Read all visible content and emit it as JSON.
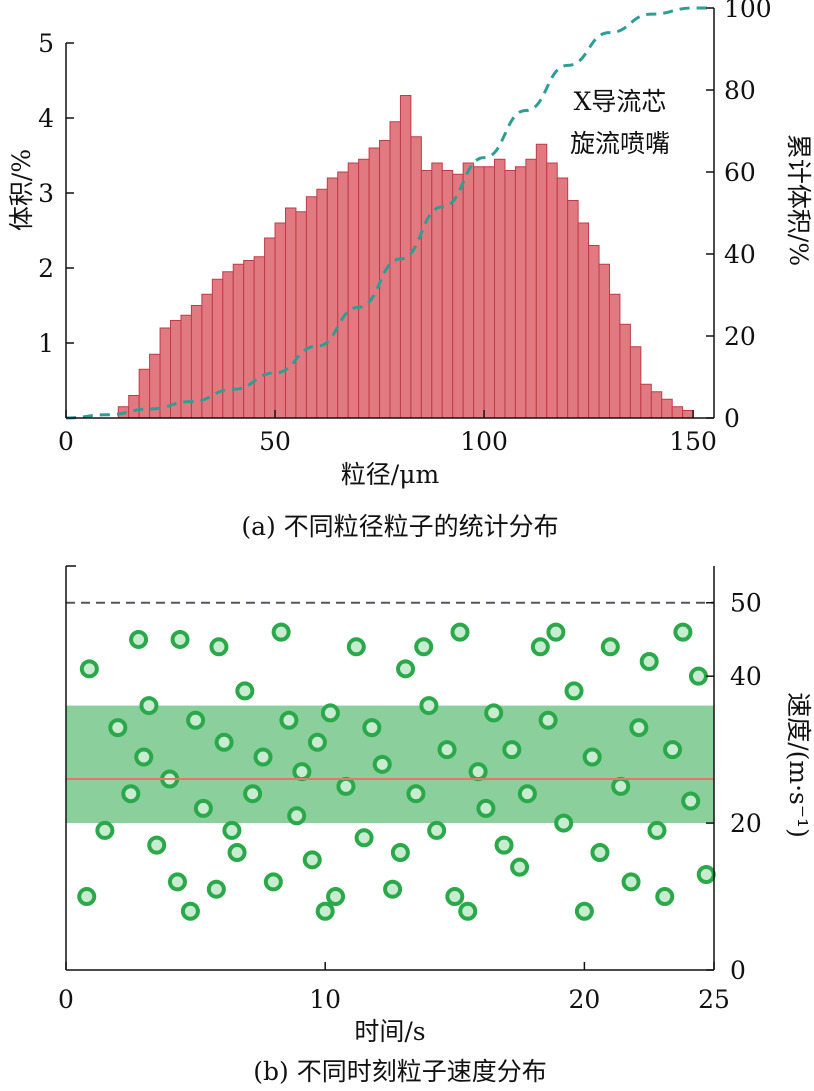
{
  "chart_data": [
    {
      "type": "bar",
      "caption": "(a) 不同粒径粒子的统计分布",
      "xlabel": "粒径/μm",
      "ylabel": "体积/%",
      "y2label": "累计体积/%",
      "annotation": [
        "X导流芯",
        "旋流喷嘴"
      ],
      "xlim": [
        0,
        155
      ],
      "ylim": [
        0,
        5
      ],
      "y2lim": [
        0,
        100
      ],
      "xticks": [
        0,
        50,
        100,
        150
      ],
      "yticks": [
        1,
        2,
        3,
        4,
        5
      ],
      "y2ticks": [
        0,
        20,
        40,
        60,
        80,
        100
      ],
      "bin_width": 2.5,
      "bin_centers": [
        13.75,
        16.25,
        18.75,
        21.25,
        23.75,
        26.25,
        28.75,
        31.25,
        33.75,
        36.25,
        38.75,
        41.25,
        43.75,
        46.25,
        48.75,
        51.25,
        53.75,
        56.25,
        58.75,
        61.25,
        63.75,
        66.25,
        68.75,
        71.25,
        73.75,
        76.25,
        78.75,
        81.25,
        83.75,
        86.25,
        88.75,
        91.25,
        93.75,
        96.25,
        98.75,
        101.25,
        103.75,
        106.25,
        108.75,
        111.25,
        113.75,
        116.25,
        118.75,
        121.25,
        123.75,
        126.25,
        128.75,
        131.25,
        133.75,
        136.25,
        138.75,
        141.25,
        143.75,
        146.25,
        148.75
      ],
      "values": [
        0.15,
        0.3,
        0.65,
        0.85,
        1.2,
        1.3,
        1.37,
        1.5,
        1.65,
        1.85,
        1.95,
        2.05,
        2.1,
        2.15,
        2.4,
        2.6,
        2.8,
        2.75,
        2.95,
        3.05,
        3.2,
        3.28,
        3.4,
        3.45,
        3.6,
        3.7,
        3.95,
        4.3,
        3.75,
        3.3,
        3.4,
        3.3,
        3.25,
        3.4,
        3.35,
        3.35,
        3.45,
        3.3,
        3.35,
        3.45,
        3.65,
        3.4,
        3.2,
        2.9,
        2.6,
        2.3,
        2.05,
        1.65,
        1.25,
        0.95,
        0.45,
        0.35,
        0.25,
        0.15,
        0.1
      ],
      "cumulative_series": {
        "name": "累计体积",
        "style": "dashed",
        "color": "#2e9e94",
        "x": [
          0,
          10,
          20,
          30,
          40,
          50,
          60,
          70,
          80,
          90,
          100,
          110,
          120,
          130,
          140,
          150,
          160
        ],
        "y": [
          0,
          0.8,
          2.2,
          4,
          7,
          11,
          17.5,
          27,
          38.8,
          51.5,
          63.5,
          75,
          86,
          94,
          98.5,
          100,
          100
        ]
      },
      "bar_color": "#e07a80",
      "bar_edge_color": "#c23a48"
    },
    {
      "type": "scatter",
      "caption": "(b) 不同时刻粒子速度分布",
      "xlabel": "时间/s",
      "ylabel": "速度/(m·s⁻¹)",
      "xlim": [
        0,
        25
      ],
      "ylim": [
        0,
        55
      ],
      "xticks": [
        0,
        10,
        20,
        25
      ],
      "yticks": [
        0,
        20,
        40,
        50
      ],
      "mean_line": 26,
      "mean_line_color": "#e2776a",
      "max_line": 50,
      "max_line_style": "dashed",
      "point_color": "#2aa84a",
      "points": [
        [
          0.8,
          10
        ],
        [
          0.9,
          41
        ],
        [
          1.5,
          19
        ],
        [
          2.0,
          33
        ],
        [
          2.5,
          24
        ],
        [
          2.8,
          45
        ],
        [
          3.0,
          29
        ],
        [
          3.2,
          36
        ],
        [
          3.5,
          17
        ],
        [
          4.0,
          26
        ],
        [
          4.3,
          12
        ],
        [
          4.4,
          45
        ],
        [
          4.8,
          8
        ],
        [
          5.0,
          34
        ],
        [
          5.3,
          22
        ],
        [
          5.8,
          11
        ],
        [
          5.9,
          44
        ],
        [
          6.1,
          31
        ],
        [
          6.4,
          19
        ],
        [
          6.6,
          16
        ],
        [
          6.9,
          38
        ],
        [
          7.2,
          24
        ],
        [
          7.6,
          29
        ],
        [
          8.0,
          12
        ],
        [
          8.3,
          46
        ],
        [
          8.6,
          34
        ],
        [
          8.9,
          21
        ],
        [
          9.1,
          27
        ],
        [
          9.5,
          15
        ],
        [
          9.7,
          31
        ],
        [
          10.0,
          8
        ],
        [
          10.2,
          35
        ],
        [
          10.4,
          10
        ],
        [
          10.8,
          25
        ],
        [
          11.2,
          44
        ],
        [
          11.5,
          18
        ],
        [
          11.8,
          33
        ],
        [
          12.2,
          28
        ],
        [
          12.6,
          11
        ],
        [
          12.9,
          16
        ],
        [
          13.1,
          41
        ],
        [
          13.5,
          24
        ],
        [
          13.8,
          44
        ],
        [
          14.0,
          36
        ],
        [
          14.3,
          19
        ],
        [
          14.7,
          30
        ],
        [
          15.0,
          10
        ],
        [
          15.2,
          46
        ],
        [
          15.5,
          8
        ],
        [
          15.9,
          27
        ],
        [
          16.2,
          22
        ],
        [
          16.5,
          35
        ],
        [
          16.9,
          17
        ],
        [
          17.2,
          30
        ],
        [
          17.5,
          14
        ],
        [
          17.8,
          24
        ],
        [
          18.3,
          44
        ],
        [
          18.6,
          34
        ],
        [
          18.9,
          46
        ],
        [
          19.2,
          20
        ],
        [
          19.6,
          38
        ],
        [
          20.0,
          8
        ],
        [
          20.3,
          29
        ],
        [
          20.6,
          16
        ],
        [
          21.0,
          44
        ],
        [
          21.4,
          25
        ],
        [
          21.8,
          12
        ],
        [
          22.1,
          33
        ],
        [
          22.5,
          42
        ],
        [
          22.8,
          19
        ],
        [
          23.1,
          10
        ],
        [
          23.4,
          30
        ],
        [
          23.8,
          46
        ],
        [
          24.1,
          23
        ],
        [
          24.4,
          40
        ],
        [
          24.7,
          13
        ]
      ]
    }
  ]
}
